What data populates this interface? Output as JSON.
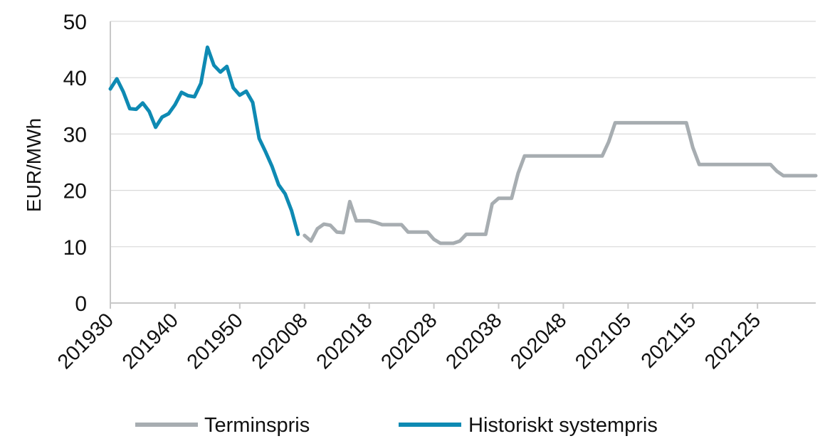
{
  "chart_data": {
    "type": "line",
    "ylabel": "EUR/MWh",
    "ylim": [
      0,
      50
    ],
    "yticks": [
      0,
      10,
      20,
      30,
      40,
      50
    ],
    "xtick_labels": [
      "201930",
      "201940",
      "201950",
      "202008",
      "202018",
      "202028",
      "202038",
      "202048",
      "202105",
      "202115",
      "202125"
    ],
    "grid": "horizontal",
    "legend_position": "bottom",
    "series": [
      {
        "name": "Terminspris",
        "color": "#a7adb1",
        "points": [
          [
            119,
            12.0
          ],
          [
            120,
            11.0
          ],
          [
            121,
            13.2
          ],
          [
            122,
            14.0
          ],
          [
            123,
            13.8
          ],
          [
            124,
            12.6
          ],
          [
            125,
            12.5
          ],
          [
            126,
            18.0
          ],
          [
            127,
            14.6
          ],
          [
            128,
            14.6
          ],
          [
            129,
            14.6
          ],
          [
            130,
            14.3
          ],
          [
            131,
            13.9
          ],
          [
            132,
            13.9
          ],
          [
            133,
            13.9
          ],
          [
            134,
            13.9
          ],
          [
            135,
            12.6
          ],
          [
            136,
            12.6
          ],
          [
            137,
            12.6
          ],
          [
            138,
            12.6
          ],
          [
            139,
            11.3
          ],
          [
            140,
            10.6
          ],
          [
            141,
            10.6
          ],
          [
            142,
            10.6
          ],
          [
            143,
            11.0
          ],
          [
            144,
            12.2
          ],
          [
            145,
            12.2
          ],
          [
            146,
            12.2
          ],
          [
            147,
            12.2
          ],
          [
            148,
            17.6
          ],
          [
            149,
            18.6
          ],
          [
            150,
            18.6
          ],
          [
            151,
            18.6
          ],
          [
            152,
            23.0
          ],
          [
            153,
            26.1
          ],
          [
            154,
            26.1
          ],
          [
            155,
            26.1
          ],
          [
            156,
            26.1
          ],
          [
            157,
            26.1
          ],
          [
            158,
            26.1
          ],
          [
            159,
            26.1
          ],
          [
            160,
            26.1
          ],
          [
            161,
            26.1
          ],
          [
            162,
            26.1
          ],
          [
            163,
            26.1
          ],
          [
            164,
            26.1
          ],
          [
            165,
            26.1
          ],
          [
            166,
            28.6
          ],
          [
            167,
            32.0
          ],
          [
            168,
            32.0
          ],
          [
            169,
            32.0
          ],
          [
            170,
            32.0
          ],
          [
            171,
            32.0
          ],
          [
            172,
            32.0
          ],
          [
            173,
            32.0
          ],
          [
            174,
            32.0
          ],
          [
            175,
            32.0
          ],
          [
            176,
            32.0
          ],
          [
            177,
            32.0
          ],
          [
            178,
            32.0
          ],
          [
            179,
            27.6
          ],
          [
            180,
            24.6
          ],
          [
            181,
            24.6
          ],
          [
            182,
            24.6
          ],
          [
            183,
            24.6
          ],
          [
            184,
            24.6
          ],
          [
            185,
            24.6
          ],
          [
            186,
            24.6
          ],
          [
            187,
            24.6
          ],
          [
            188,
            24.6
          ],
          [
            189,
            24.6
          ],
          [
            190,
            24.6
          ],
          [
            191,
            24.6
          ],
          [
            192,
            23.4
          ],
          [
            193,
            22.6
          ],
          [
            194,
            22.6
          ],
          [
            195,
            22.6
          ],
          [
            196,
            22.6
          ],
          [
            197,
            22.6
          ],
          [
            198,
            22.6
          ]
        ]
      },
      {
        "name": "Historiskt systempris",
        "color": "#0e8ab3",
        "points": [
          [
            89,
            38.0
          ],
          [
            90,
            39.8
          ],
          [
            91,
            37.5
          ],
          [
            92,
            34.5
          ],
          [
            93,
            34.4
          ],
          [
            94,
            35.5
          ],
          [
            95,
            34.0
          ],
          [
            96,
            31.2
          ],
          [
            97,
            33.0
          ],
          [
            98,
            33.6
          ],
          [
            99,
            35.2
          ],
          [
            100,
            37.4
          ],
          [
            101,
            36.8
          ],
          [
            102,
            36.6
          ],
          [
            103,
            39.0
          ],
          [
            104,
            45.4
          ],
          [
            105,
            42.2
          ],
          [
            106,
            41.0
          ],
          [
            107,
            42.0
          ],
          [
            108,
            38.2
          ],
          [
            109,
            36.9
          ],
          [
            110,
            37.6
          ],
          [
            111,
            35.6
          ],
          [
            112,
            29.2
          ],
          [
            113,
            26.8
          ],
          [
            114,
            24.2
          ],
          [
            115,
            21.0
          ],
          [
            116,
            19.4
          ],
          [
            117,
            16.4
          ],
          [
            118,
            12.2
          ]
        ]
      }
    ]
  }
}
